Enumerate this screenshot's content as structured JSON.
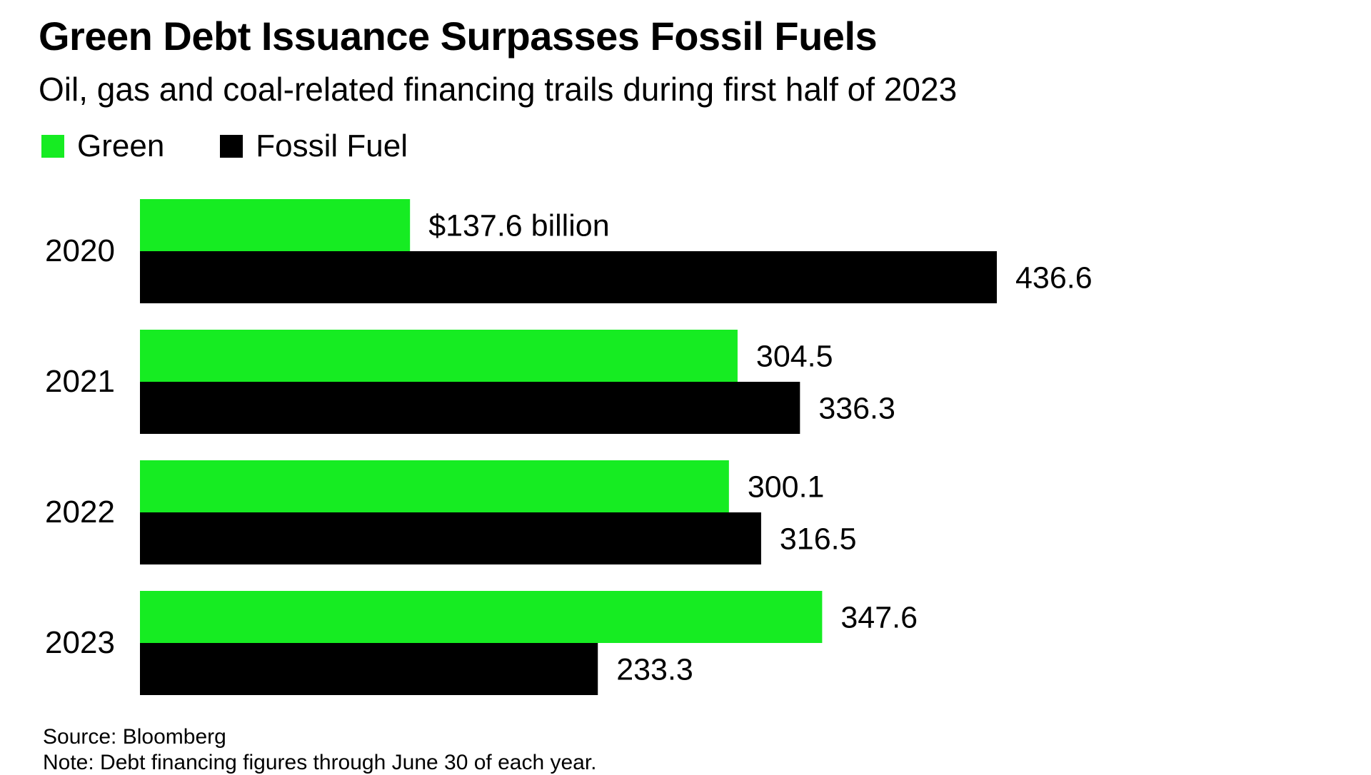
{
  "chart_data": {
    "type": "bar",
    "orientation": "horizontal",
    "title": "Green Debt Issuance Surpasses Fossil Fuels",
    "subtitle": "Oil, gas and coal-related financing trails during first half of 2023",
    "categories": [
      "2020",
      "2021",
      "2022",
      "2023"
    ],
    "series": [
      {
        "name": "Green",
        "color": "#16ec22",
        "values": [
          137.6,
          304.5,
          300.1,
          347.6
        ],
        "labels": [
          "$137.6 billion",
          "304.5",
          "300.1",
          "347.6"
        ]
      },
      {
        "name": "Fossil Fuel",
        "color": "#000000",
        "values": [
          436.6,
          336.3,
          316.5,
          233.3
        ],
        "labels": [
          "436.6",
          "336.3",
          "316.5",
          "233.3"
        ]
      }
    ],
    "unit": "billion USD",
    "xlim": [
      0,
      436.6
    ],
    "grid": false,
    "legend_position": "top-left"
  },
  "footer": {
    "source": "Source: Bloomberg",
    "note": "Note: Debt financing figures through June 30 of each year."
  }
}
